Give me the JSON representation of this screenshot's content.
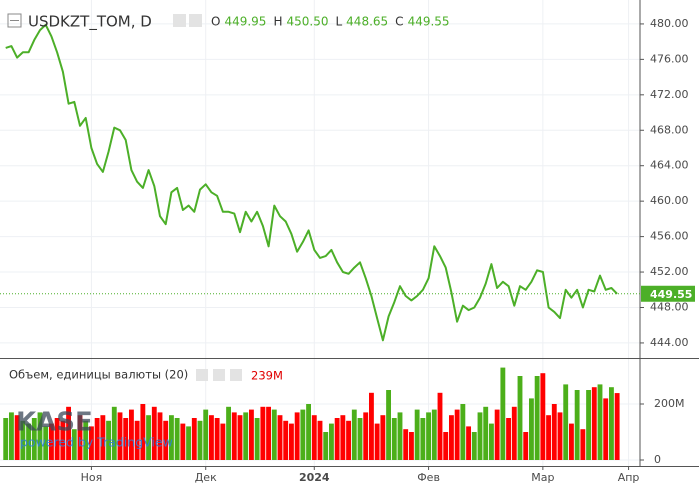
{
  "chart_data": {
    "type": "line",
    "title": "USDKZT_TOM, D",
    "ohlc": [
      {
        "key": "O",
        "value": 449.95,
        "label": "449.95"
      },
      {
        "key": "H",
        "value": 450.5,
        "label": "450.50"
      },
      {
        "key": "L",
        "value": 448.65,
        "label": "448.65"
      },
      {
        "key": "C",
        "value": 449.55,
        "label": "449.55"
      }
    ],
    "xlim": [
      -1,
      111
    ],
    "xticks": [
      {
        "value": 15,
        "label": "Ноя"
      },
      {
        "value": 35,
        "label": "Дек"
      },
      {
        "value": 54,
        "label": "2024"
      },
      {
        "value": 74,
        "label": "Фев"
      },
      {
        "value": 94,
        "label": "Мар"
      },
      {
        "value": 109,
        "label": "Апр"
      }
    ],
    "ylim": [
      442.3,
      482.7
    ],
    "yticks": [
      {
        "value": 444,
        "label": "444.00"
      },
      {
        "value": 448,
        "label": "448.00"
      },
      {
        "value": 452,
        "label": "452.00"
      },
      {
        "value": 456,
        "label": "456.00"
      },
      {
        "value": 460,
        "label": "460.00"
      },
      {
        "value": 464,
        "label": "464.00"
      },
      {
        "value": 468,
        "label": "468.00"
      },
      {
        "value": 472,
        "label": "472.00"
      },
      {
        "value": 476,
        "label": "476.00"
      },
      {
        "value": 480,
        "label": "480.00"
      }
    ],
    "y2lim": [
      0,
      350000000
    ],
    "y2ticks": [
      0,
      {
        "value": 200000000,
        "label": "200M"
      }
    ],
    "grid": true,
    "series": [
      {
        "color": "#4caf28",
        "values": [
          477.3,
          477.5,
          476.2,
          476.8,
          476.8,
          478.2,
          479.3,
          479.9,
          478.6,
          476.8,
          474.6,
          471.0,
          471.2,
          468.5,
          469.4,
          466.0,
          464.2,
          463.3,
          465.6,
          468.3,
          468.0,
          466.9,
          463.5,
          462.2,
          461.5,
          463.5,
          461.7,
          458.3,
          457.4,
          461.0,
          461.5,
          459.0,
          459.5,
          458.8,
          461.3,
          461.9,
          461.0,
          460.6,
          458.8,
          458.8,
          458.6,
          456.5,
          458.8,
          457.7,
          458.8,
          457.2,
          454.9,
          459.5,
          458.3,
          457.7,
          456.3,
          454.3,
          455.4,
          456.7,
          454.5,
          453.6,
          453.8,
          454.5,
          453.1,
          452.0,
          451.8,
          452.5,
          453.1,
          451.3,
          449.3,
          446.8,
          444.3,
          447.0,
          448.6,
          450.4,
          449.3,
          448.8,
          449.3,
          450.0,
          451.3,
          454.9,
          453.8,
          452.5,
          449.7,
          446.4,
          448.2,
          447.7,
          448.0,
          449.1,
          450.7,
          452.9,
          450.2,
          450.9,
          450.4,
          448.2,
          450.4,
          450.0,
          450.9,
          452.2,
          452.0,
          448.0,
          447.5,
          446.8,
          450.0,
          449.1,
          450.0,
          448.0,
          450.0,
          449.8,
          451.6,
          450.0,
          450.2,
          449.55
        ]
      },
      {
        "name": "Объем, единицы валюты (20)",
        "type": "bar",
        "axis": "y2",
        "up_color": "#4caf1a",
        "down_color": "#ff0000",
        "last_label": "239M",
        "values": [
          150000000.0,
          170000000.0,
          160000000.0,
          140000000.0,
          130000000.0,
          150000000.0,
          170000000.0,
          120000000.0,
          130000000.0,
          150000000.0,
          140000000.0,
          190000000.0,
          110000000.0,
          160000000.0,
          140000000.0,
          120000000.0,
          150000000.0,
          160000000.0,
          140000000.0,
          190000000.0,
          170000000.0,
          150000000.0,
          180000000.0,
          140000000.0,
          200000000.0,
          160000000.0,
          190000000.0,
          170000000.0,
          140000000.0,
          160000000.0,
          150000000.0,
          130000000.0,
          120000000.0,
          150000000.0,
          140000000.0,
          180000000.0,
          160000000.0,
          150000000.0,
          130000000.0,
          190000000.0,
          170000000.0,
          160000000.0,
          170000000.0,
          180000000.0,
          150000000.0,
          190000000.0,
          190000000.0,
          180000000.0,
          160000000.0,
          140000000.0,
          130000000.0,
          170000000.0,
          180000000.0,
          200000000.0,
          160000000.0,
          140000000.0,
          100000000.0,
          130000000.0,
          150000000.0,
          160000000.0,
          140000000.0,
          180000000.0,
          150000000.0,
          170000000.0,
          240000000.0,
          130000000.0,
          160000000.0,
          250000000.0,
          150000000.0,
          170000000.0,
          110000000.0,
          100000000.0,
          180000000.0,
          150000000.0,
          170000000.0,
          180000000.0,
          240000000.0,
          100000000.0,
          160000000.0,
          180000000.0,
          200000000.0,
          120000000.0,
          100000000.0,
          170000000.0,
          190000000.0,
          130000000.0,
          180000000.0,
          330000000.0,
          150000000.0,
          190000000.0,
          300000000.0,
          100000000.0,
          220000000.0,
          300000000.0,
          310000000.0,
          160000000.0,
          200000000.0,
          170000000.0,
          270000000.0,
          130000000.0,
          250000000.0,
          110000000.0,
          250000000.0,
          260000000.0,
          270000000.0,
          220000000.0,
          260000000.0,
          239000000.0
        ]
      }
    ],
    "watermark": {
      "logo": "KASE",
      "text": "powered by TradingView"
    }
  }
}
